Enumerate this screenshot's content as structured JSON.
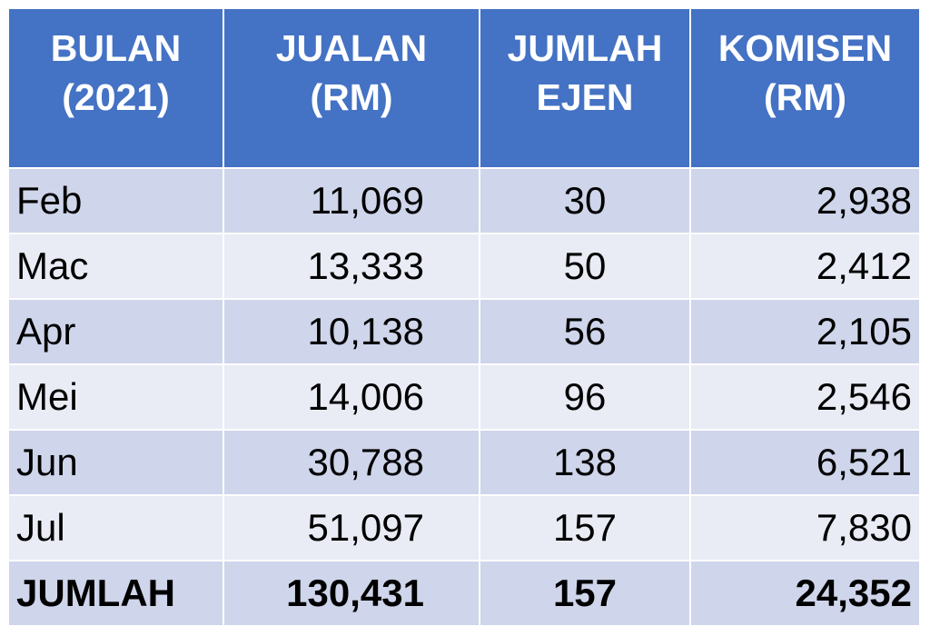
{
  "table": {
    "headers": [
      {
        "line1": "BULAN",
        "line2": "(2021)"
      },
      {
        "line1": "JUALAN",
        "line2": "(RM)"
      },
      {
        "line1": "JUMLAH",
        "line2": "EJEN"
      },
      {
        "line1": "KOMISEN",
        "line2": "(RM)"
      }
    ],
    "rows": [
      {
        "month": "Feb",
        "sales": "11,069",
        "agents": "30",
        "commission": "2,938"
      },
      {
        "month": "Mac",
        "sales": "13,333",
        "agents": "50",
        "commission": "2,412"
      },
      {
        "month": "Apr",
        "sales": "10,138",
        "agents": "56",
        "commission": "2,105"
      },
      {
        "month": "Mei",
        "sales": "14,006",
        "agents": "96",
        "commission": "2,546"
      },
      {
        "month": "Jun",
        "sales": "30,788",
        "agents": "138",
        "commission": "6,521"
      },
      {
        "month": "Jul",
        "sales": "51,097",
        "agents": "157",
        "commission": "7,830"
      }
    ],
    "total": {
      "label": "JUMLAH",
      "sales": "130,431",
      "agents": "157",
      "commission": "24,352"
    }
  },
  "colors": {
    "header_bg": "#4472c4",
    "row_dark": "#cfd5ea",
    "row_light": "#e9ebf5"
  }
}
